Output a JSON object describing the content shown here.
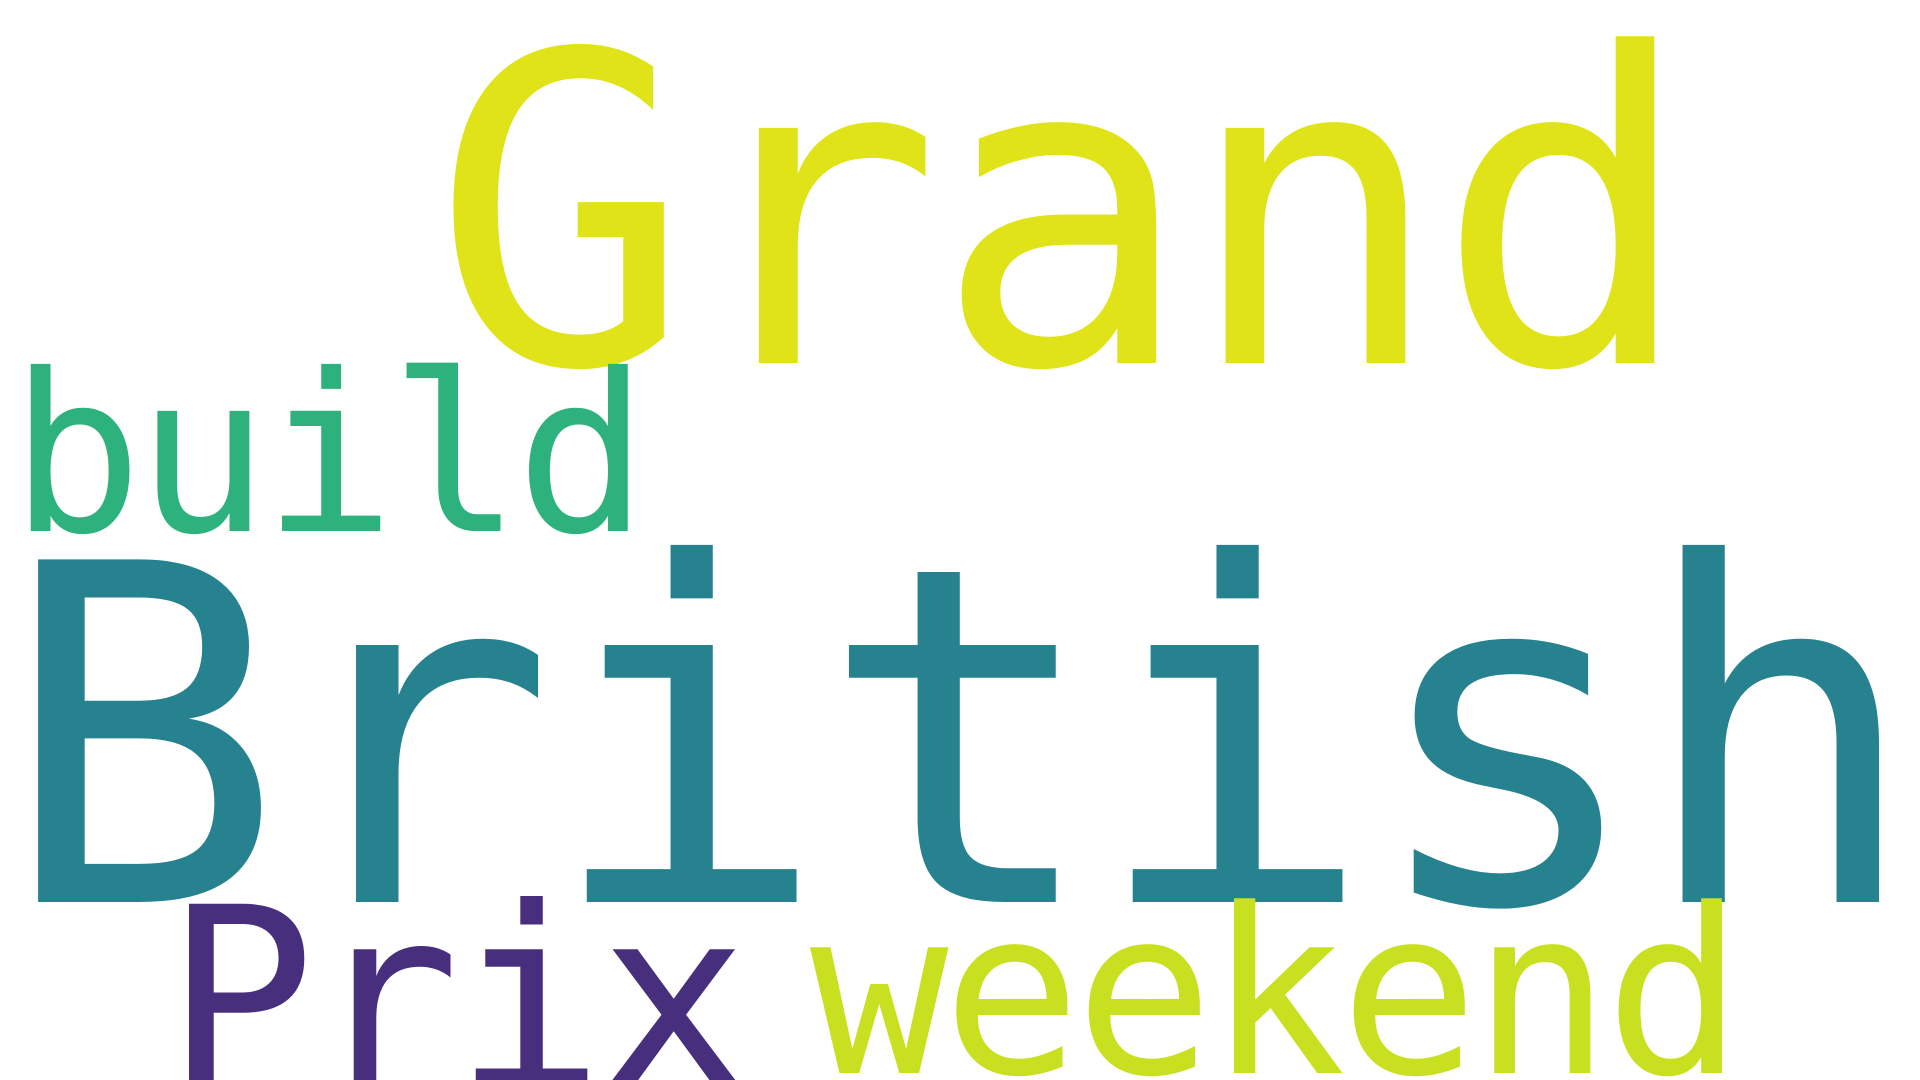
{
  "wordcloud": {
    "words": [
      {
        "text": "Grand",
        "color": "#dfe318"
      },
      {
        "text": "build",
        "color": "#2db27d"
      },
      {
        "text": "British",
        "color": "#26828e"
      },
      {
        "text": "Prix",
        "color": "#472f7d"
      },
      {
        "text": "weekend",
        "color": "#c8e020"
      }
    ]
  }
}
